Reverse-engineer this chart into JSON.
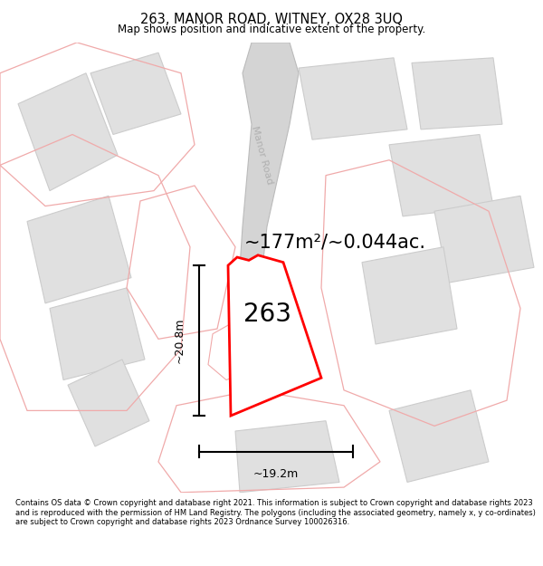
{
  "title": "263, MANOR ROAD, WITNEY, OX28 3UQ",
  "subtitle": "Map shows position and indicative extent of the property.",
  "area_text": "~177m²/~0.044ac.",
  "plot_number": "263",
  "dim_height": "~20.8m",
  "dim_width": "~19.2m",
  "road_label": "Manor Road",
  "footer": "Contains OS data © Crown copyright and database right 2021. This information is subject to Crown copyright and database rights 2023 and is reproduced with the permission of HM Land Registry. The polygons (including the associated geometry, namely x, y co-ordinates) are subject to Crown copyright and database rights 2023 Ordnance Survey 100026316.",
  "bg_color": "#ffffff",
  "map_bg": "#f7f4f4",
  "plot_color": "#ff0000",
  "plot_fill": "#ffffff",
  "neighbor_color": "#f0aaaa",
  "neighbor_fill": "#e8e8e8",
  "bldg_fill": "#e0e0e0",
  "bldg_stroke": "#cccccc",
  "road_fill": "#d4d4d4",
  "road_stroke": "#bbbbbb"
}
